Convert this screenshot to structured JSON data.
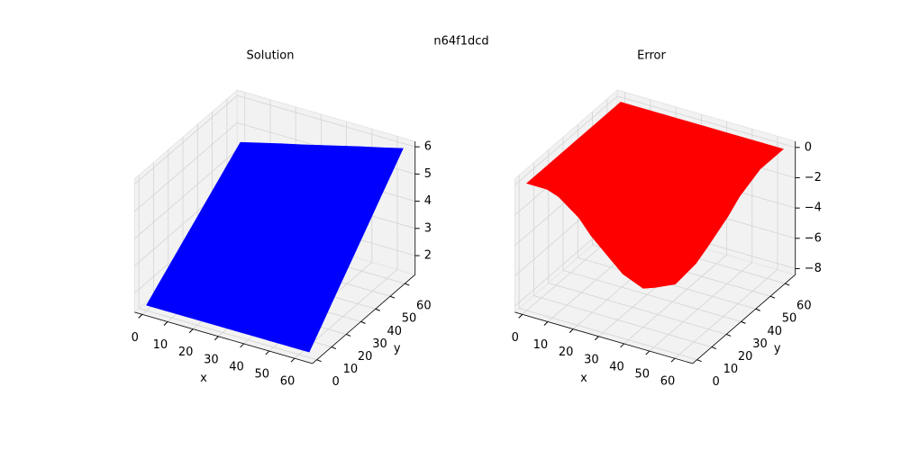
{
  "title": "n64f1dcd",
  "chart_data": [
    {
      "type": "surface3d",
      "title": "Solution",
      "xlabel": "x",
      "ylabel": "y",
      "color": "#0000ff",
      "x": [
        0,
        8,
        16,
        24,
        32,
        40,
        48,
        56,
        64
      ],
      "y": [
        0,
        8,
        16,
        24,
        32,
        40,
        48,
        56,
        64
      ],
      "z": [
        [
          1.5,
          1.88,
          2.25,
          2.63,
          3,
          3.38,
          3.75,
          4.13,
          4.5
        ],
        [
          1.5,
          1.9,
          2.3,
          2.69,
          3.09,
          3.49,
          3.89,
          4.29,
          4.69
        ],
        [
          1.5,
          1.92,
          2.34,
          2.77,
          3.19,
          3.61,
          4.03,
          4.45,
          4.88
        ],
        [
          1.5,
          1.95,
          2.39,
          2.84,
          3.28,
          3.73,
          4.17,
          4.62,
          5.06
        ],
        [
          1.5,
          1.97,
          2.44,
          2.91,
          3.38,
          3.84,
          4.31,
          4.78,
          5.25
        ],
        [
          1.5,
          1.99,
          2.48,
          2.98,
          3.47,
          3.96,
          4.45,
          4.94,
          5.44
        ],
        [
          1.5,
          2.02,
          2.53,
          3.05,
          3.56,
          4.08,
          4.59,
          5.11,
          5.63
        ],
        [
          1.5,
          2.04,
          2.58,
          3.12,
          3.66,
          4.2,
          4.73,
          5.27,
          5.81
        ],
        [
          1.5,
          2.06,
          2.63,
          3.19,
          3.75,
          4.31,
          4.88,
          5.44,
          6
        ]
      ],
      "xlim": [
        -3,
        67
      ],
      "ylim": [
        -3,
        67
      ],
      "zlim": [
        1.3,
        6.2
      ],
      "xticks": [
        0,
        10,
        20,
        30,
        40,
        50,
        60
      ],
      "yticks": [
        0,
        10,
        20,
        30,
        40,
        50,
        60
      ],
      "zticks": [
        2,
        3,
        4,
        5,
        6
      ]
    },
    {
      "type": "surface3d",
      "title": "Error",
      "xlabel": "x",
      "ylabel": "y",
      "color": "#ff0000",
      "x": [
        0,
        8,
        16,
        24,
        32,
        40,
        48,
        56,
        64
      ],
      "y": [
        0,
        8,
        16,
        24,
        32,
        40,
        48,
        56,
        64
      ],
      "z": [
        [
          0,
          0,
          0,
          0,
          0,
          0,
          0,
          0,
          0
        ],
        [
          0,
          -1.17,
          -2.17,
          -2.83,
          -3.06,
          -2.83,
          -2.17,
          -1.17,
          0
        ],
        [
          0,
          -2.17,
          -4,
          -5.23,
          -5.66,
          -5.23,
          -4,
          -2.17,
          0
        ],
        [
          0,
          -2.83,
          -5.23,
          -6.83,
          -7.39,
          -6.83,
          -5.23,
          -2.83,
          0
        ],
        [
          0,
          -3.06,
          -5.66,
          -7.39,
          -8,
          -7.39,
          -5.66,
          -3.06,
          0
        ],
        [
          0,
          -2.83,
          -5.23,
          -6.83,
          -7.39,
          -6.83,
          -5.23,
          -2.83,
          0
        ],
        [
          0,
          -2.17,
          -4,
          -5.23,
          -5.66,
          -5.23,
          -4,
          -2.17,
          0
        ],
        [
          0,
          -1.17,
          -2.17,
          -2.83,
          -3.06,
          -2.83,
          -2.17,
          -1.17,
          0
        ],
        [
          0,
          0,
          0,
          0,
          0,
          0,
          0,
          0,
          0
        ]
      ],
      "xlim": [
        -3,
        67
      ],
      "ylim": [
        -3,
        67
      ],
      "zlim": [
        -8.4,
        0.4
      ],
      "xticks": [
        0,
        10,
        20,
        30,
        40,
        50,
        60
      ],
      "yticks": [
        0,
        10,
        20,
        30,
        40,
        50,
        60
      ],
      "zticks": [
        0,
        {
          "value": -2,
          "label": "−2"
        },
        {
          "value": -4,
          "label": "−4"
        },
        {
          "value": -6,
          "label": "−6"
        },
        {
          "value": -8,
          "label": "−8"
        }
      ]
    }
  ]
}
